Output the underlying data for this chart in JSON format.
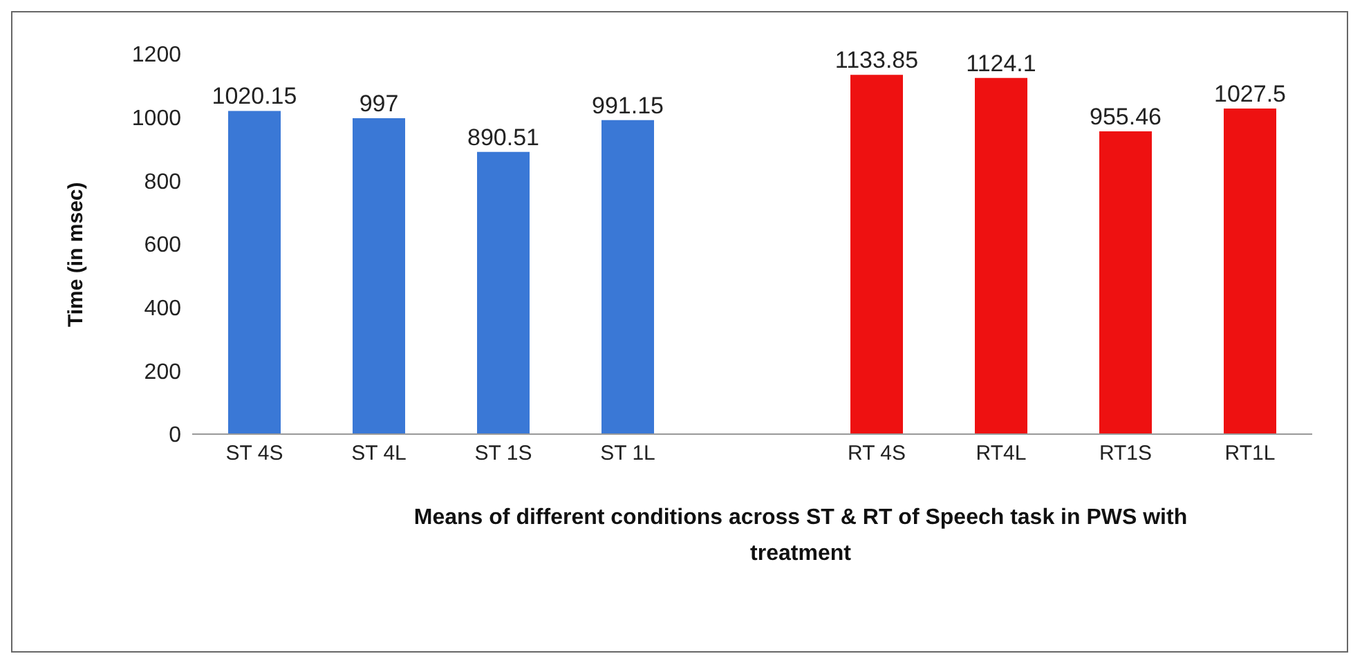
{
  "chart_data": {
    "type": "bar",
    "ylabel": "Time (in msec)",
    "xlabel": "Means of different conditions across ST & RT  of Speech task in PWS with treatment",
    "categories": [
      "ST 4S",
      "ST 4L",
      "ST 1S",
      "ST 1L",
      null,
      "RT 4S",
      "RT4L",
      "RT1S",
      "RT1L"
    ],
    "values": [
      1020.15,
      997,
      890.51,
      991.15,
      null,
      1133.85,
      1124.1,
      955.46,
      1027.5
    ],
    "colors": [
      "#3a78d6",
      "#3a78d6",
      "#3a78d6",
      "#3a78d6",
      "#3a78d6",
      "#ee1111",
      "#ee1111",
      "#ee1111",
      "#ee1111"
    ],
    "ylim": [
      0,
      1200
    ],
    "yticks": [
      0,
      200,
      400,
      600,
      800,
      1000,
      1200
    ],
    "data_labels": true
  }
}
